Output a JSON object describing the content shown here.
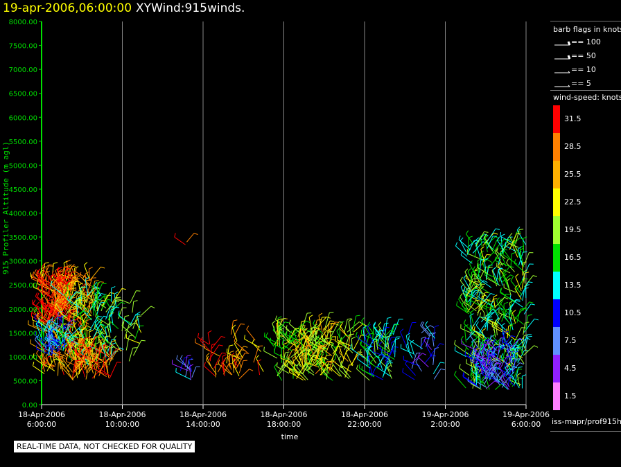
{
  "header": {
    "datetime": "19-apr-2006,06:00:00",
    "product": "XYWind:915winds."
  },
  "quality_note": "REAL-TIME DATA, NOT CHECKED FOR QUALITY",
  "source_label": "iss-mapr/prof915h",
  "legend": {
    "barb_title": "barb flags in knots",
    "barb_entries": [
      "== 100",
      "== 50",
      "== 10",
      "== 5"
    ],
    "speed_title": "wind-speed: knots",
    "speed_bins": [
      {
        "label": "31.5",
        "color": "#ff0000"
      },
      {
        "label": "28.5",
        "color": "#ff8000"
      },
      {
        "label": "25.5",
        "color": "#ffb000"
      },
      {
        "label": "22.5",
        "color": "#ffff00"
      },
      {
        "label": "19.5",
        "color": "#a0ff30"
      },
      {
        "label": "16.5",
        "color": "#00e000"
      },
      {
        "label": "13.5",
        "color": "#00ffff"
      },
      {
        "label": "10.5",
        "color": "#0000ff"
      },
      {
        "label": "7.5",
        "color": "#6090ff"
      },
      {
        "label": "4.5",
        "color": "#9020ff"
      },
      {
        "label": "1.5",
        "color": "#ff80ff"
      }
    ]
  },
  "chart_data": {
    "type": "scatter",
    "title": "XYWind:915winds.",
    "ylabel": "915 Profiler Altitude (m agl)",
    "xlabel": "time",
    "ylim": [
      0,
      8000
    ],
    "yticks": [
      "0.00",
      "500.00",
      "1000.00",
      "1500.00",
      "2000.00",
      "2500.00",
      "3000.00",
      "3500.00",
      "4000.00",
      "4500.00",
      "5000.00",
      "5500.00",
      "6000.00",
      "6500.00",
      "7000.00",
      "7500.00",
      "8000.00"
    ],
    "xticks": [
      {
        "date": "18-Apr-2006",
        "time": "6:00:00"
      },
      {
        "date": "18-Apr-2006",
        "time": "10:00:00"
      },
      {
        "date": "18-Apr-2006",
        "time": "14:00:00"
      },
      {
        "date": "18-Apr-2006",
        "time": "18:00:00"
      },
      {
        "date": "18-Apr-2006",
        "time": "22:00:00"
      },
      {
        "date": "19-Apr-2006",
        "time": "2:00:00"
      },
      {
        "date": "19-Apr-2006",
        "time": "6:00:00"
      }
    ],
    "xlim_hours": [
      0,
      24
    ],
    "grid": "vertical",
    "clusters": [
      {
        "t0": 0.0,
        "t1": 2.5,
        "h0": 500,
        "h1": 2700,
        "speed": 26,
        "n": 240
      },
      {
        "t0": 0.0,
        "t1": 1.5,
        "h0": 1700,
        "h1": 2600,
        "speed": 31,
        "n": 110
      },
      {
        "t0": 0.0,
        "t1": 1.3,
        "h0": 1000,
        "h1": 1600,
        "speed": 12,
        "n": 60
      },
      {
        "t0": 1.0,
        "t1": 3.5,
        "h0": 800,
        "h1": 2300,
        "speed": 17,
        "n": 100
      },
      {
        "t0": 1.5,
        "t1": 3.5,
        "h0": 500,
        "h1": 1100,
        "speed": 29,
        "n": 50
      },
      {
        "t0": 2.5,
        "t1": 5.0,
        "h0": 900,
        "h1": 2200,
        "speed": 19,
        "n": 40
      },
      {
        "t0": 6.8,
        "t1": 7.5,
        "h0": 500,
        "h1": 800,
        "speed": 9,
        "n": 10
      },
      {
        "t0": 7.1,
        "t1": 7.2,
        "h0": 3300,
        "h1": 3500,
        "speed": 31,
        "n": 2
      },
      {
        "t0": 8.0,
        "t1": 9.8,
        "h0": 500,
        "h1": 1300,
        "speed": 30,
        "n": 25
      },
      {
        "t0": 9.0,
        "t1": 11.0,
        "h0": 500,
        "h1": 1500,
        "speed": 26,
        "n": 20
      },
      {
        "t0": 11.5,
        "t1": 15.5,
        "h0": 500,
        "h1": 1600,
        "speed": 20,
        "n": 150
      },
      {
        "t0": 12.5,
        "t1": 14.5,
        "h0": 600,
        "h1": 1500,
        "speed": 23,
        "n": 60
      },
      {
        "t0": 16.0,
        "t1": 17.5,
        "h0": 500,
        "h1": 1500,
        "speed": 15,
        "n": 70
      },
      {
        "t0": 18.0,
        "t1": 19.5,
        "h0": 500,
        "h1": 1500,
        "speed": 10,
        "n": 30
      },
      {
        "t0": 21.0,
        "t1": 24.0,
        "h0": 300,
        "h1": 3400,
        "speed": 17,
        "n": 300
      },
      {
        "t0": 21.5,
        "t1": 23.5,
        "h0": 300,
        "h1": 1200,
        "speed": 8,
        "n": 90
      }
    ]
  }
}
